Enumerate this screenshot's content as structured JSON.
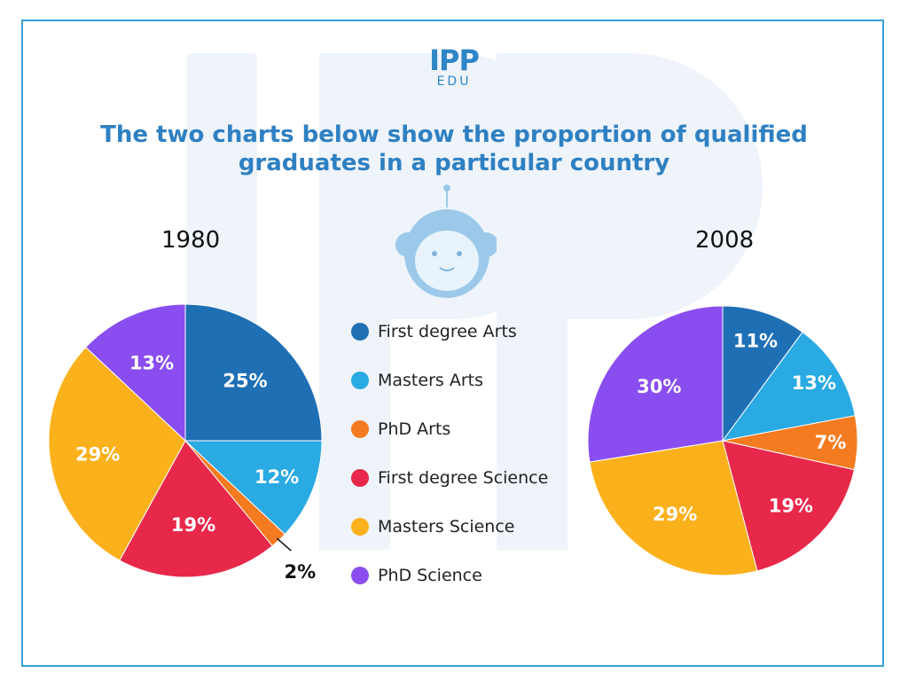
{
  "header": {
    "logo_main": "IPP",
    "logo_sub": "EDU",
    "title_line1": "The two charts below show the proportion of qualified",
    "title_line2": "graduates in a particular country"
  },
  "colors": {
    "frame": "#3aa0d8",
    "title": "#2f80c2",
    "first_degree_arts": "#1f6fb5",
    "masters_arts": "#2aaae2",
    "phd_arts": "#f47b20",
    "first_degree_science": "#e8284b",
    "masters_science": "#fbb11c",
    "phd_science": "#8a4df0"
  },
  "legend": [
    {
      "label": "First degree Arts",
      "color": "#1f6fb5"
    },
    {
      "label": "Masters Arts",
      "color": "#2aaae2"
    },
    {
      "label": "PhD Arts",
      "color": "#f47b20"
    },
    {
      "label": "First degree Science",
      "color": "#e8284b"
    },
    {
      "label": "Masters Science",
      "color": "#fbb11c"
    },
    {
      "label": "PhD Science",
      "color": "#8a4df0"
    }
  ],
  "chart_data": [
    {
      "type": "pie",
      "title": "1980",
      "categories": [
        "First degree Arts",
        "Masters Arts",
        "PhD Arts",
        "First degree Science",
        "Masters Science",
        "PhD Science"
      ],
      "values": [
        25,
        12,
        2,
        19,
        29,
        13
      ],
      "labels": [
        "25%",
        "12%",
        "2%",
        "19%",
        "29%",
        "13%"
      ],
      "start": "12 o'clock, clockwise"
    },
    {
      "type": "pie",
      "title": "2008",
      "categories": [
        "First degree Arts",
        "Masters Arts",
        "PhD Arts",
        "First degree Science",
        "Masters Science",
        "PhD Science"
      ],
      "values": [
        11,
        13,
        7,
        19,
        29,
        30
      ],
      "labels": [
        "11%",
        "13%",
        "7%",
        "19%",
        "29%",
        "30%"
      ],
      "start": "12 o'clock, clockwise"
    }
  ]
}
